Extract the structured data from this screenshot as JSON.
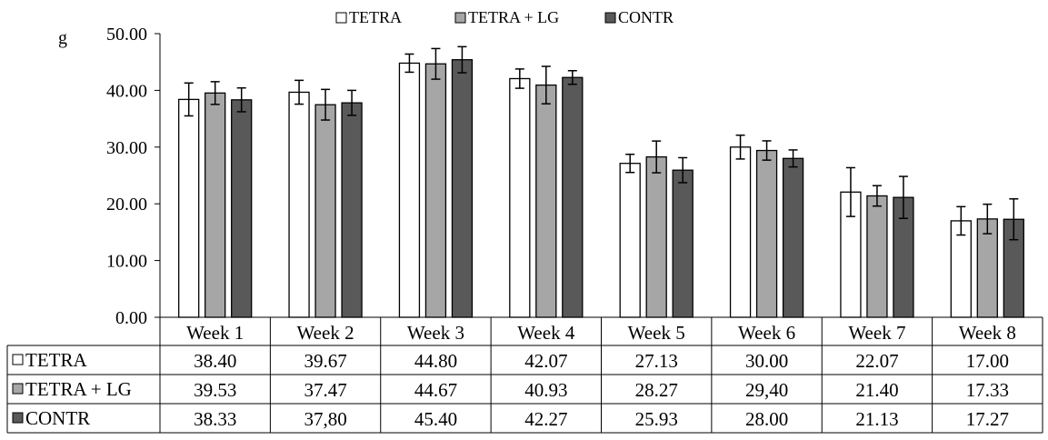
{
  "chart_data": {
    "type": "bar",
    "title": "",
    "xlabel": "",
    "ylabel": "g",
    "ylim": [
      0,
      50
    ],
    "y_ticks": [
      "0.00",
      "10.00",
      "20.00",
      "30.00",
      "40.00",
      "50.00"
    ],
    "grid": false,
    "legend_position": "top-center",
    "categories": [
      "Week 1",
      "Week 2",
      "Week 3",
      "Week 4",
      "Week 5",
      "Week 6",
      "Week 7",
      "Week 8"
    ],
    "series": [
      {
        "name": "TETRA",
        "color": "#ffffff",
        "values": [
          38.4,
          39.67,
          44.8,
          42.07,
          27.13,
          30.0,
          22.07,
          17.0
        ],
        "labels": [
          "38.40",
          "39.67",
          "44.80",
          "42.07",
          "27.13",
          "30.00",
          "22.07",
          "17.00"
        ],
        "errors": [
          2.9,
          2.1,
          1.6,
          1.7,
          1.6,
          2.1,
          4.3,
          2.5
        ]
      },
      {
        "name": "TETRA + LG",
        "color": "#a6a6a6",
        "values": [
          39.53,
          37.47,
          44.67,
          40.93,
          28.27,
          29.4,
          21.4,
          17.33
        ],
        "labels": [
          "39.53",
          "37.47",
          "44.67",
          "40.93",
          "28.27",
          "29,40",
          "21.40",
          "17.33"
        ],
        "errors": [
          2.0,
          2.7,
          2.7,
          3.3,
          2.8,
          1.7,
          1.8,
          2.6
        ]
      },
      {
        "name": "CONTR",
        "color": "#595959",
        "values": [
          38.33,
          37.8,
          45.4,
          42.27,
          25.93,
          28.0,
          21.13,
          17.27
        ],
        "labels": [
          "38.33",
          "37,80",
          "45.40",
          "42.27",
          "25.93",
          "28.00",
          "21.13",
          "17.27"
        ],
        "errors": [
          2.1,
          2.2,
          2.3,
          1.2,
          2.2,
          1.5,
          3.7,
          3.6
        ]
      }
    ]
  }
}
